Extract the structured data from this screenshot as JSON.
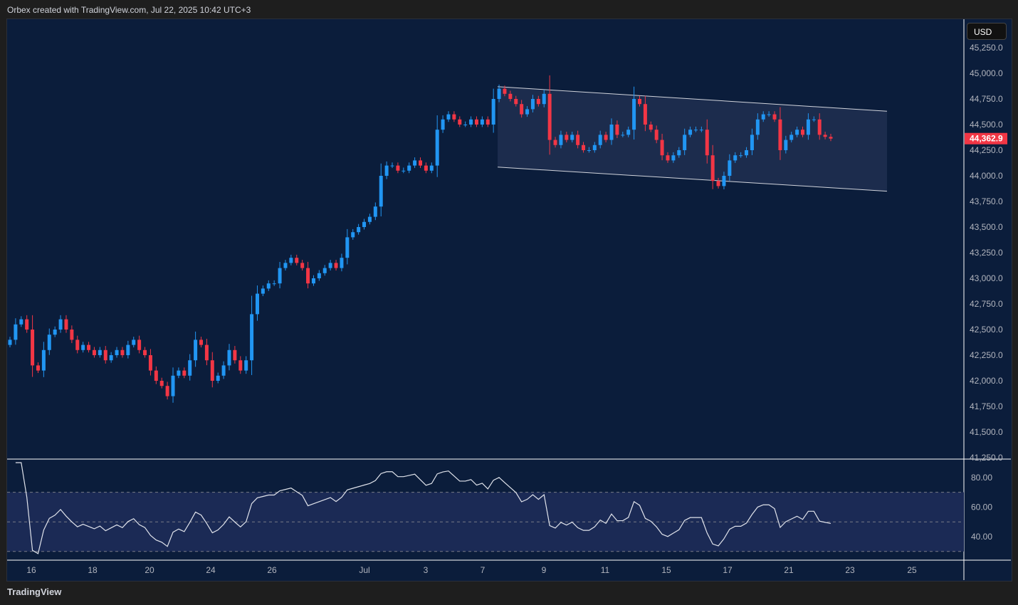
{
  "header": {
    "text": "Orbex created with TradingView.com, Jul 22, 2025 10:42 UTC+3"
  },
  "footer": {
    "brand": "TradingView"
  },
  "currency": "USD",
  "chart_data": {
    "type": "candlestick",
    "last_price_label": "44,362.9",
    "colors": {
      "up": "#2196f3",
      "down": "#f23645",
      "bg": "#0b1d3b",
      "channel": "#1e2f50"
    },
    "y_ticks": [
      "45,250.0",
      "45,000.0",
      "44,750.0",
      "44,500.0",
      "44,250.0",
      "44,000.0",
      "43,750.0",
      "43,500.0",
      "43,250.0",
      "43,000.0",
      "42,750.0",
      "42,500.0",
      "42,250.0",
      "42,000.0",
      "41,750.0",
      "41,500.0",
      "41,250.0"
    ],
    "y_tick_values": [
      45250,
      45000,
      44750,
      44500,
      44250,
      44000,
      43750,
      43500,
      43250,
      43000,
      42750,
      42500,
      42250,
      42000,
      41750,
      41500,
      41250
    ],
    "x_ticks": [
      "16",
      "18",
      "20",
      "24",
      "26",
      "Jul",
      "3",
      "7",
      "9",
      "11",
      "15",
      "17",
      "21",
      "23",
      "25"
    ],
    "closes": [
      42400,
      42550,
      42600,
      42500,
      42150,
      42100,
      42300,
      42450,
      42500,
      42600,
      42500,
      42400,
      42300,
      42350,
      42300,
      42250,
      42300,
      42200,
      42250,
      42300,
      42250,
      42350,
      42400,
      42300,
      42250,
      42100,
      42000,
      41950,
      41850,
      42050,
      42100,
      42050,
      42200,
      42400,
      42350,
      42200,
      42000,
      42050,
      42150,
      42300,
      42200,
      42100,
      42200,
      42650,
      42850,
      42900,
      42950,
      42950,
      43100,
      43150,
      43200,
      43150,
      43100,
      42950,
      43000,
      43050,
      43100,
      43150,
      43100,
      43200,
      43400,
      43450,
      43500,
      43550,
      43600,
      43700,
      44000,
      44100,
      44100,
      44050,
      44050,
      44100,
      44150,
      44100,
      44050,
      44100,
      44450,
      44550,
      44600,
      44550,
      44500,
      44500,
      44550,
      44500,
      44550,
      44500,
      44750,
      44850,
      44800,
      44750,
      44700,
      44600,
      44650,
      44750,
      44700,
      44800,
      44350,
      44300,
      44400,
      44350,
      44400,
      44300,
      44250,
      44250,
      44300,
      44400,
      44350,
      44500,
      44400,
      44400,
      44450,
      44750,
      44700,
      44500,
      44450,
      44350,
      44200,
      44150,
      44200,
      44250,
      44400,
      44450,
      44450,
      44450,
      44200,
      43950,
      43900,
      44000,
      44150,
      44200,
      44200,
      44250,
      44400,
      44550,
      44600,
      44600,
      44550,
      44250,
      44350,
      44400,
      44450,
      44400,
      44550,
      44550,
      44400,
      44380,
      44362.9
    ],
    "channel": {
      "start_index": 87,
      "end_index": 156,
      "top": [
        44870,
        44630
      ],
      "bottom": [
        44085,
        43850
      ]
    },
    "rsi": {
      "ticks": [
        "80.00",
        "60.00",
        "40.00"
      ],
      "tick_values": [
        80,
        60,
        40
      ],
      "upper": 70,
      "lower": 30,
      "period": 14
    }
  }
}
